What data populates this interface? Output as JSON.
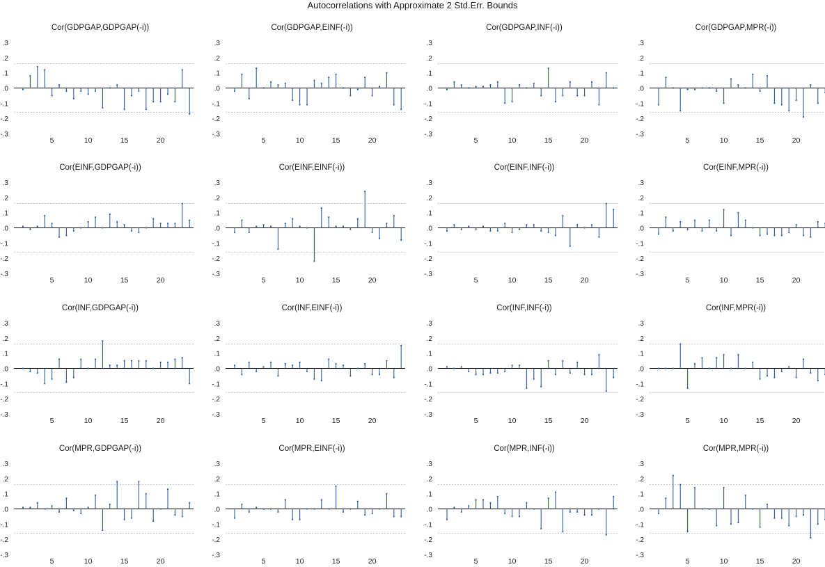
{
  "figure": {
    "title": "Autocorrelations with Approximate 2 Std.Err. Bounds"
  },
  "style": {
    "stem_color": "#2a5d9c",
    "bound_color": "#bfbfbf",
    "axis_color": "#000000",
    "text_color": "#1a1a1a"
  },
  "chart_data": {
    "type": "stem",
    "ylim": [
      -0.3,
      0.3
    ],
    "yticks": [
      ".3",
      ".2",
      ".1",
      ".0",
      "-.1",
      "-.2",
      "-.3"
    ],
    "xticks": [
      5,
      10,
      15,
      20
    ],
    "lags": [
      1,
      2,
      3,
      4,
      5,
      6,
      7,
      8,
      9,
      10,
      11,
      12,
      13,
      14,
      15,
      16,
      17,
      18,
      19,
      20,
      21,
      22,
      23,
      24
    ],
    "std_err_bound": 0.16,
    "panels": [
      {
        "title": "Cor(GDPGAP,GDPGAP(-i))",
        "values": [
          -0.01,
          0.08,
          0.14,
          0.12,
          -0.05,
          0.02,
          -0.02,
          -0.07,
          -0.02,
          -0.04,
          -0.02,
          -0.13,
          0.0,
          0.02,
          -0.14,
          -0.05,
          -0.02,
          -0.14,
          -0.09,
          -0.09,
          -0.04,
          -0.09,
          0.12,
          -0.17
        ]
      },
      {
        "title": "Cor(GDPGAP,EINF(-i))",
        "values": [
          -0.02,
          0.09,
          -0.07,
          0.13,
          0.0,
          0.04,
          0.02,
          0.03,
          -0.08,
          -0.11,
          -0.11,
          0.05,
          0.03,
          0.07,
          0.09,
          0.0,
          -0.05,
          -0.01,
          0.07,
          -0.05,
          0.01,
          0.1,
          -0.11,
          -0.14
        ]
      },
      {
        "title": "Cor(GDPGAP,INF(-i))",
        "values": [
          -0.01,
          0.04,
          0.02,
          0.0,
          0.01,
          0.01,
          0.02,
          0.04,
          -0.1,
          -0.09,
          0.02,
          0.0,
          0.03,
          -0.05,
          0.13,
          -0.09,
          -0.05,
          0.04,
          -0.05,
          -0.05,
          0.04,
          -0.11,
          0.1,
          0.0
        ]
      },
      {
        "title": "Cor(GDPGAP,MPR(-i))",
        "values": [
          -0.11,
          0.07,
          0.0,
          -0.15,
          -0.01,
          -0.01,
          0.0,
          0.0,
          -0.02,
          -0.1,
          0.06,
          0.02,
          0.0,
          0.09,
          -0.02,
          0.08,
          -0.1,
          -0.11,
          -0.15,
          -0.08,
          -0.19,
          0.02,
          -0.1,
          -0.03
        ]
      },
      {
        "title": "Cor(EINF,GDPGAP(-i))",
        "values": [
          0.01,
          -0.01,
          0.01,
          0.08,
          0.03,
          -0.06,
          -0.05,
          -0.02,
          0.0,
          0.04,
          0.07,
          0.0,
          0.09,
          0.04,
          0.02,
          -0.02,
          -0.03,
          0.0,
          0.06,
          0.03,
          0.03,
          0.03,
          0.16,
          0.05
        ]
      },
      {
        "title": "Cor(EINF,EINF(-i))",
        "values": [
          -0.03,
          0.05,
          -0.03,
          0.01,
          0.02,
          0.01,
          -0.14,
          0.03,
          0.06,
          0.01,
          0.0,
          -0.22,
          0.13,
          0.07,
          0.01,
          0.01,
          -0.01,
          0.06,
          0.24,
          -0.03,
          -0.07,
          0.03,
          0.08,
          -0.08
        ]
      },
      {
        "title": "Cor(EINF,INF(-i))",
        "values": [
          -0.02,
          0.02,
          -0.01,
          0.01,
          -0.01,
          0.01,
          -0.02,
          -0.02,
          0.03,
          -0.03,
          -0.01,
          0.02,
          0.02,
          -0.02,
          -0.03,
          -0.05,
          0.08,
          -0.12,
          0.02,
          0.0,
          0.02,
          -0.06,
          0.16,
          0.12
        ]
      },
      {
        "title": "Cor(EINF,MPR(-i))",
        "values": [
          -0.04,
          0.07,
          -0.02,
          0.04,
          -0.01,
          0.05,
          -0.02,
          0.05,
          -0.02,
          0.12,
          -0.05,
          0.1,
          0.05,
          0.0,
          -0.05,
          -0.04,
          -0.05,
          -0.05,
          -0.03,
          0.02,
          -0.05,
          -0.06,
          0.04,
          0.03
        ]
      },
      {
        "title": "Cor(INF,GDPGAP(-i))",
        "values": [
          0.0,
          -0.02,
          -0.03,
          -0.1,
          -0.07,
          0.06,
          -0.09,
          -0.06,
          0.06,
          0.0,
          0.06,
          0.18,
          0.02,
          0.02,
          0.05,
          0.05,
          0.05,
          0.05,
          0.0,
          0.04,
          0.04,
          0.06,
          0.07,
          -0.1
        ]
      },
      {
        "title": "Cor(INF,EINF(-i))",
        "values": [
          0.02,
          -0.04,
          0.04,
          -0.02,
          0.01,
          0.04,
          -0.05,
          0.03,
          0.02,
          0.04,
          -0.02,
          -0.07,
          -0.08,
          0.06,
          0.03,
          0.02,
          -0.05,
          0.0,
          0.03,
          -0.04,
          -0.04,
          0.05,
          -0.06,
          0.15
        ]
      },
      {
        "title": "Cor(INF,INF(-i))",
        "values": [
          0.01,
          0.0,
          0.01,
          -0.02,
          -0.04,
          -0.04,
          -0.03,
          -0.03,
          -0.02,
          0.02,
          0.02,
          -0.13,
          -0.07,
          -0.12,
          0.05,
          -0.04,
          0.05,
          -0.03,
          0.04,
          -0.04,
          -0.04,
          0.09,
          -0.15,
          -0.06
        ]
      },
      {
        "title": "Cor(INF,MPR(-i))",
        "values": [
          0.0,
          0.0,
          0.0,
          0.16,
          -0.13,
          0.03,
          0.07,
          0.0,
          0.07,
          0.09,
          0.0,
          0.09,
          0.0,
          0.04,
          -0.07,
          -0.05,
          -0.06,
          -0.02,
          0.01,
          -0.06,
          0.06,
          -0.03,
          -0.08,
          -0.04
        ]
      },
      {
        "title": "Cor(MPR,GDPGAP(-i))",
        "values": [
          0.01,
          0.01,
          0.04,
          0.0,
          0.02,
          -0.02,
          0.07,
          -0.01,
          -0.03,
          0.01,
          0.09,
          -0.14,
          0.03,
          0.18,
          -0.07,
          -0.06,
          0.18,
          0.1,
          -0.08,
          0.0,
          0.13,
          -0.04,
          -0.05,
          0.04
        ]
      },
      {
        "title": "Cor(MPR,EINF(-i))",
        "values": [
          -0.06,
          0.03,
          -0.02,
          0.01,
          0.0,
          0.0,
          -0.02,
          0.06,
          -0.07,
          -0.07,
          0.0,
          0.0,
          0.06,
          0.0,
          0.15,
          -0.02,
          0.0,
          0.05,
          -0.04,
          -0.03,
          0.0,
          0.1,
          -0.05,
          -0.05
        ]
      },
      {
        "title": "Cor(MPR,INF(-i))",
        "values": [
          -0.07,
          0.01,
          -0.02,
          0.02,
          0.06,
          0.06,
          0.04,
          0.08,
          -0.03,
          -0.05,
          -0.05,
          0.04,
          0.0,
          -0.13,
          0.07,
          0.11,
          -0.15,
          -0.02,
          -0.02,
          -0.04,
          -0.04,
          0.0,
          -0.17,
          0.08
        ]
      },
      {
        "title": "Cor(MPR,MPR(-i))",
        "values": [
          -0.03,
          0.07,
          0.22,
          0.16,
          -0.15,
          0.14,
          0.0,
          0.0,
          -0.11,
          0.14,
          -0.1,
          -0.09,
          0.09,
          0.0,
          -0.12,
          0.03,
          -0.06,
          -0.06,
          -0.11,
          -0.05,
          -0.04,
          -0.19,
          -0.1,
          -0.07
        ]
      }
    ]
  }
}
